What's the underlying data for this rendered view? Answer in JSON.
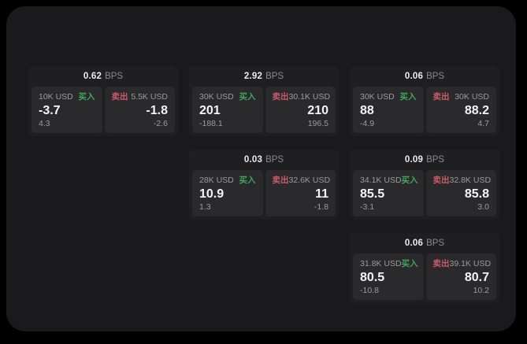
{
  "colors": {
    "page_background": "#000000",
    "panel_background": "#1a1a1c",
    "card_background": "#1f1f21",
    "subpanel_background": "#2a2a2c",
    "buy_accent": "#3fa65a",
    "sell_accent": "#cc5a68",
    "primary_text": "#f5f5f5",
    "muted_text": "#9b9b9f"
  },
  "labels": {
    "bps_unit": "BPS",
    "buy": "买入",
    "sell": "卖出"
  },
  "cards": [
    {
      "col": 1,
      "row": 1,
      "bps": "0.62",
      "buy": {
        "amount": "10K USD",
        "main": "-3.7",
        "sub": "4.3"
      },
      "sell": {
        "amount": "5.5K USD",
        "main": "-1.8",
        "sub": "-2.6"
      }
    },
    {
      "col": 2,
      "row": 1,
      "bps": "2.92",
      "buy": {
        "amount": "30K USD",
        "main": "201",
        "sub": "-188.1"
      },
      "sell": {
        "amount": "30.1K USD",
        "main": "210",
        "sub": "196.5"
      }
    },
    {
      "col": 3,
      "row": 1,
      "bps": "0.06",
      "buy": {
        "amount": "30K USD",
        "main": "88",
        "sub": "-4.9"
      },
      "sell": {
        "amount": "30K USD",
        "main": "88.2",
        "sub": "4.7"
      }
    },
    {
      "col": 2,
      "row": 2,
      "bps": "0.03",
      "buy": {
        "amount": "28K USD",
        "main": "10.9",
        "sub": "1.3"
      },
      "sell": {
        "amount": "32.6K USD",
        "main": "11",
        "sub": "-1.8"
      }
    },
    {
      "col": 3,
      "row": 2,
      "bps": "0.09",
      "buy": {
        "amount": "34.1K USD",
        "main": "85.5",
        "sub": "-3.1"
      },
      "sell": {
        "amount": "32.8K USD",
        "main": "85.8",
        "sub": "3.0"
      }
    },
    {
      "col": 3,
      "row": 3,
      "bps": "0.06",
      "buy": {
        "amount": "31.8K USD",
        "main": "80.5",
        "sub": "-10.8"
      },
      "sell": {
        "amount": "39.1K USD",
        "main": "80.7",
        "sub": "10.2"
      }
    }
  ]
}
